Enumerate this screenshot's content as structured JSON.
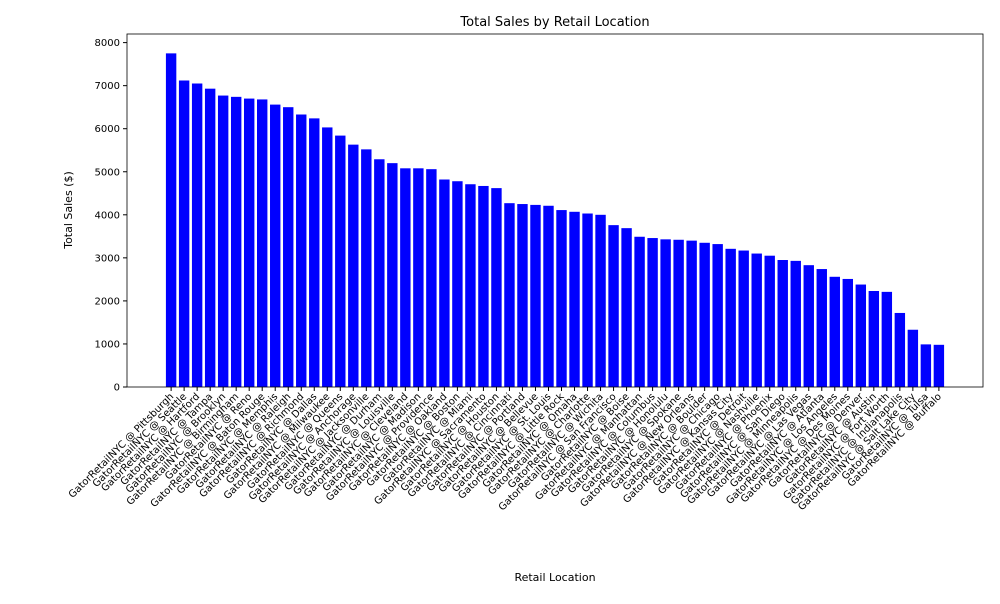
{
  "chart_data": {
    "type": "bar",
    "title": "Total Sales by Retail Location",
    "xlabel": "Retail Location",
    "ylabel": "Total Sales ($)",
    "color": "#0000ff",
    "categories": [
      "GatorRetailNYC @ Pittsburgh",
      "GatorRetailNYC @ Seattle",
      "GatorRetailNYC @ Hartford",
      "GatorRetailNYC @ Tampa",
      "GatorRetailNYC @ Brooklyn",
      "GatorRetailNYC @ Birmingham",
      "GatorRetailNYC @ Reno",
      "GatorRetailNYC @ Baton Rouge",
      "GatorRetailNYC @ Memphis",
      "GatorRetailNYC @ Raleigh",
      "GatorRetailNYC @ Richmond",
      "GatorRetailNYC @ Dallas",
      "GatorRetailNYC @ Milwaukee",
      "GatorRetailNYC @ Queens",
      "GatorRetailNYC @ Anchorage",
      "GatorRetailNYC @ Jacksonville",
      "GatorRetailNYC @ Durham",
      "GatorRetailNYC @ Louisville",
      "GatorRetailNYC @ Cleveland",
      "GatorRetailNYC @ Madison",
      "GatorRetailNYC @ Providence",
      "GatorRetailNYC @ Oakland",
      "GatorRetailNYC @ Boston",
      "GatorRetailNYC @ Miami",
      "GatorRetailNYC @ Sacramento",
      "GatorRetailNYC @ Houston",
      "GatorRetailNYC @ Cincinnati",
      "GatorRetailNYC @ Portland",
      "GatorRetailNYC @ Bellevue",
      "GatorRetailNYC @ St. Louis",
      "GatorRetailNYC @ Little Rock",
      "GatorRetailNYC @ Omaha",
      "GatorRetailNYC @ Charlotte",
      "GatorRetailNYC @ Wichita",
      "GatorRetailNYC @ San Francisco",
      "GatorRetailNYC @ Boise",
      "GatorRetailNYC @ Manhattan",
      "GatorRetailNYC @ Columbus",
      "GatorRetailNYC @ Honolulu",
      "GatorRetailNYC @ Spokane",
      "GatorRetailNYC @ New Orleans",
      "GatorRetailNYC @ Boulder",
      "GatorRetailNYC @ Chicago",
      "GatorRetailNYC @ Kansas City",
      "GatorRetailNYC @ Detroit",
      "GatorRetailNYC @ Nashville",
      "GatorRetailNYC @ Phoenix",
      "GatorRetailNYC @ San Diego",
      "GatorRetailNYC @ Minneapolis",
      "GatorRetailNYC @ Las Vegas",
      "GatorRetailNYC @ Atlanta",
      "GatorRetailNYC @ Los Angeles",
      "GatorRetailNYC @ Des Moines",
      "GatorRetailNYC @ Denver",
      "GatorRetailNYC @ Austin",
      "GatorRetailNYC @ Fort Worth",
      "GatorRetailNYC @ Indianapolis",
      "GatorRetailNYC @ Salt Lake City",
      "GatorRetailNYC @ Tulsa",
      "GatorRetailNYC @ Buffalo"
    ],
    "values": [
      7750,
      7120,
      7050,
      6930,
      6770,
      6740,
      6700,
      6680,
      6560,
      6500,
      6330,
      6240,
      6030,
      5840,
      5630,
      5520,
      5290,
      5200,
      5080,
      5080,
      5060,
      4820,
      4780,
      4710,
      4670,
      4620,
      4270,
      4250,
      4230,
      4210,
      4110,
      4070,
      4030,
      4000,
      3760,
      3690,
      3490,
      3460,
      3430,
      3420,
      3400,
      3350,
      3320,
      3210,
      3170,
      3100,
      3050,
      2950,
      2930,
      2830,
      2740,
      2560,
      2510,
      2380,
      2230,
      2210,
      1720,
      1330,
      990,
      980
    ],
    "ylim": [
      0,
      8200
    ],
    "yticks": [
      0,
      1000,
      2000,
      3000,
      4000,
      5000,
      6000,
      7000,
      8000
    ]
  }
}
